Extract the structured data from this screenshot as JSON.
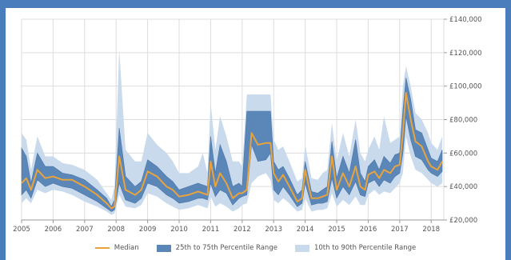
{
  "chart_data": {
    "type": "area",
    "title": "",
    "xlabel": "",
    "ylabel": "",
    "x_ticks": [
      "2005",
      "2006",
      "2007",
      "2008",
      "2009",
      "2010",
      "2011",
      "2012",
      "2013",
      "2014",
      "2015",
      "2016",
      "2017",
      "2018"
    ],
    "y_ticks": [
      "£20,000",
      "£40,000",
      "£60,000",
      "£80,000",
      "£100,000",
      "£120,000",
      "£140,000"
    ],
    "xlim": [
      2005,
      2018.4
    ],
    "ylim": [
      20000,
      140000
    ],
    "grid": true,
    "legend_position": "bottom",
    "colors": {
      "median": "#e8a33d",
      "iqr": "#5b86b8",
      "outer": "#c9daed"
    },
    "series": [
      {
        "name": "Median"
      },
      {
        "name": "25th to 75th Percentile Range"
      },
      {
        "name": "10th to 90th Percentile Range"
      }
    ],
    "x": [
      2005,
      2005.15,
      2005.3,
      2005.5,
      2005.75,
      2006,
      2006.3,
      2006.6,
      2007,
      2007.4,
      2007.7,
      2007.85,
      2007.95,
      2008.1,
      2008.3,
      2008.6,
      2008.8,
      2009,
      2009.3,
      2009.6,
      2009.8,
      2010,
      2010.3,
      2010.6,
      2010.75,
      2010.9,
      2011,
      2011.15,
      2011.3,
      2011.5,
      2011.7,
      2011.9,
      2012,
      2012.15,
      2012.3,
      2012.5,
      2012.75,
      2012.9,
      2013,
      2013.15,
      2013.3,
      2013.5,
      2013.75,
      2013.9,
      2014,
      2014.2,
      2014.4,
      2014.55,
      2014.7,
      2014.85,
      2015,
      2015.2,
      2015.4,
      2015.6,
      2015.75,
      2015.9,
      2016,
      2016.2,
      2016.35,
      2016.5,
      2016.7,
      2016.85,
      2017,
      2017.1,
      2017.2,
      2017.35,
      2017.5,
      2017.7,
      2017.9,
      2018,
      2018.2,
      2018.35
    ],
    "median": [
      42000,
      45000,
      38000,
      50000,
      45000,
      46000,
      44000,
      44000,
      40000,
      35000,
      30000,
      27000,
      28000,
      58000,
      38000,
      35000,
      38000,
      49000,
      46000,
      40000,
      38000,
      34000,
      35000,
      37000,
      36000,
      35000,
      55000,
      40000,
      48000,
      42000,
      33000,
      36000,
      36000,
      38000,
      72000,
      65000,
      66000,
      66000,
      48000,
      43000,
      47000,
      40000,
      31000,
      33000,
      50000,
      33000,
      33000,
      34000,
      35000,
      58000,
      38000,
      48000,
      40000,
      52000,
      40000,
      38000,
      47000,
      49000,
      45000,
      50000,
      48000,
      52000,
      53000,
      72000,
      96000,
      80000,
      67000,
      64000,
      55000,
      52000,
      50000,
      55000
    ],
    "p25": [
      35000,
      38000,
      33000,
      44000,
      40000,
      42000,
      40000,
      39000,
      35000,
      31000,
      27000,
      25000,
      26000,
      42000,
      32000,
      30000,
      33000,
      42000,
      40000,
      35000,
      33000,
      30000,
      31000,
      33000,
      33000,
      32000,
      42000,
      34000,
      38000,
      36000,
      29000,
      33000,
      34000,
      35000,
      65000,
      55000,
      56000,
      60000,
      38000,
      35000,
      40000,
      35000,
      28000,
      30000,
      42000,
      29000,
      30000,
      30000,
      31000,
      45000,
      33000,
      40000,
      35000,
      43000,
      35000,
      34000,
      42000,
      44000,
      40000,
      44000,
      42000,
      46000,
      48000,
      60000,
      82000,
      68000,
      58000,
      56000,
      50000,
      48000,
      46000,
      49000
    ],
    "p75": [
      63000,
      58000,
      42000,
      60000,
      52000,
      52000,
      48000,
      47000,
      44000,
      38000,
      33000,
      28000,
      32000,
      75000,
      46000,
      40000,
      43000,
      56000,
      52000,
      46000,
      43000,
      38000,
      40000,
      42000,
      41000,
      40000,
      70000,
      48000,
      65000,
      55000,
      40000,
      42000,
      40000,
      85000,
      85000,
      85000,
      85000,
      85000,
      55000,
      50000,
      52000,
      45000,
      35000,
      38000,
      55000,
      37000,
      36000,
      38000,
      40000,
      67000,
      45000,
      58000,
      48000,
      68000,
      48000,
      43000,
      52000,
      56000,
      50000,
      58000,
      54000,
      59000,
      60000,
      85000,
      105000,
      92000,
      74000,
      72000,
      62000,
      57000,
      55000,
      62000
    ],
    "p10": [
      30000,
      33000,
      30000,
      38000,
      36000,
      38000,
      37000,
      35000,
      31000,
      28000,
      25000,
      23000,
      24000,
      35000,
      28000,
      27000,
      29000,
      36000,
      34000,
      30000,
      28000,
      26000,
      27000,
      29000,
      28000,
      27000,
      34000,
      28000,
      30000,
      28000,
      25000,
      27000,
      29000,
      30000,
      42000,
      46000,
      48000,
      44000,
      32000,
      30000,
      33000,
      30000,
      25000,
      26000,
      33000,
      25000,
      26000,
      26000,
      27000,
      36000,
      28000,
      32000,
      29000,
      34000,
      29000,
      29000,
      35000,
      38000,
      35000,
      37000,
      36000,
      39000,
      42000,
      48000,
      70000,
      58000,
      50000,
      48000,
      44000,
      42000,
      40000,
      42000
    ],
    "p90": [
      72000,
      68000,
      50000,
      70000,
      58000,
      58000,
      54000,
      53000,
      50000,
      44000,
      36000,
      32000,
      40000,
      122000,
      62000,
      55000,
      55000,
      72000,
      65000,
      60000,
      55000,
      48000,
      48000,
      52000,
      60000,
      48000,
      90000,
      62000,
      82000,
      70000,
      55000,
      55000,
      52000,
      95000,
      95000,
      95000,
      95000,
      95000,
      68000,
      62000,
      64000,
      55000,
      43000,
      45000,
      65000,
      45000,
      44000,
      48000,
      50000,
      78000,
      55000,
      72000,
      58000,
      80000,
      60000,
      55000,
      62000,
      70000,
      62000,
      82000,
      66000,
      68000,
      70000,
      100000,
      112000,
      100000,
      84000,
      80000,
      72000,
      66000,
      62000,
      70000
    ]
  }
}
